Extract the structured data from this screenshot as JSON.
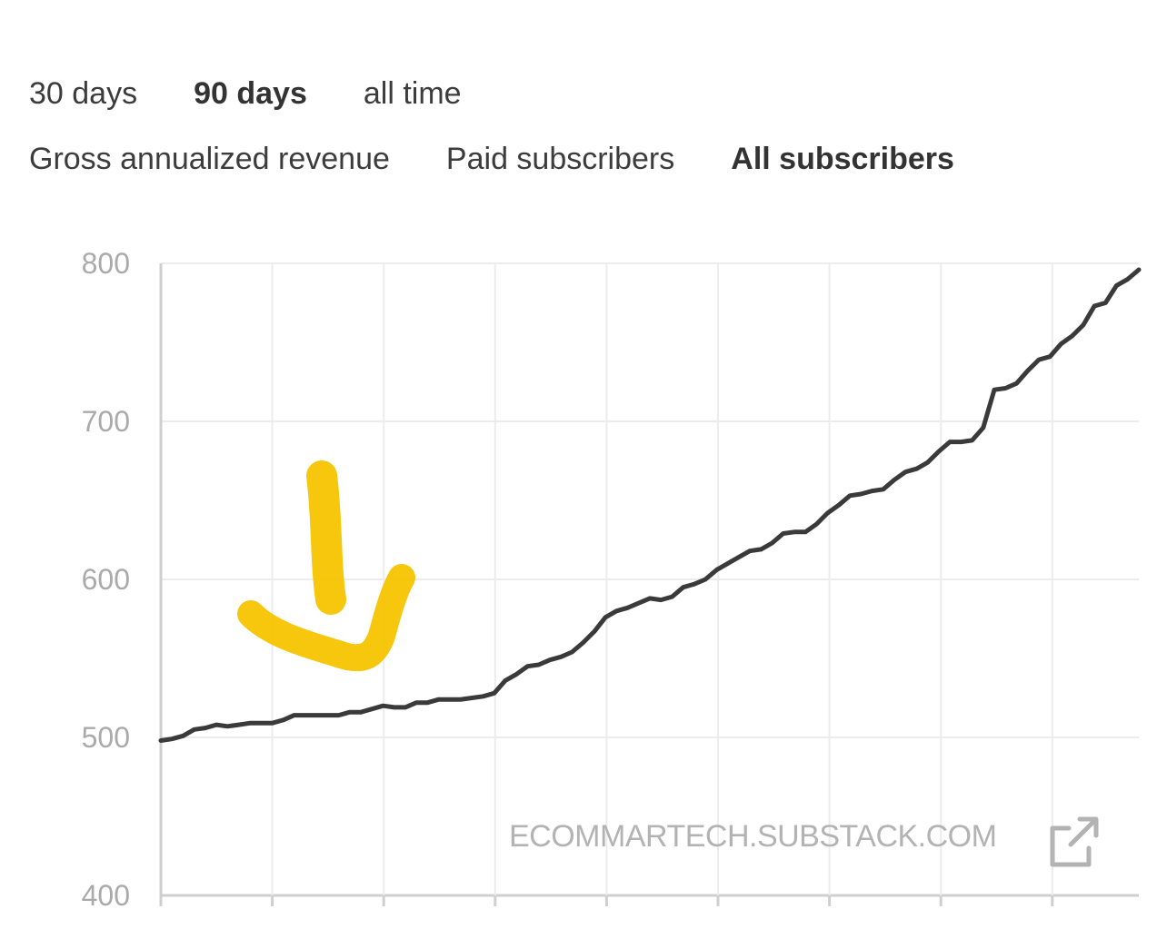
{
  "period_tabs": {
    "items": [
      {
        "label": "30 days",
        "active": false
      },
      {
        "label": "90 days",
        "active": true
      },
      {
        "label": "all time",
        "active": false
      }
    ]
  },
  "metric_tabs": {
    "items": [
      {
        "label": "Gross annualized revenue",
        "active": false
      },
      {
        "label": "Paid subscribers",
        "active": false
      },
      {
        "label": "All subscribers",
        "active": true
      }
    ]
  },
  "watermark": {
    "text": "ECOMMARTECH.SUBSTACK.COM",
    "icon": "external-link-icon"
  },
  "annotation": {
    "icon": "down-arrow-icon",
    "color": "#f7c400"
  },
  "chart_data": {
    "type": "line",
    "title": "",
    "xlabel": "",
    "ylabel": "",
    "ylim": [
      400,
      800
    ],
    "yticks": [
      800,
      700,
      600,
      500,
      400
    ],
    "grid": true,
    "legend": "none",
    "series_color": "#3a3a3a",
    "x": [
      0,
      1,
      2,
      3,
      4,
      5,
      6,
      7,
      8,
      9,
      10,
      11,
      12,
      13,
      14,
      15,
      16,
      17,
      18,
      19,
      20,
      21,
      22,
      23,
      24,
      25,
      26,
      27,
      28,
      29,
      30,
      31,
      32,
      33,
      34,
      35,
      36,
      37,
      38,
      39,
      40,
      41,
      42,
      43,
      44,
      45,
      46,
      47,
      48,
      49,
      50,
      51,
      52,
      53,
      54,
      55,
      56,
      57,
      58,
      59,
      60,
      61,
      62,
      63,
      64,
      65,
      66,
      67,
      68,
      69,
      70,
      71,
      72,
      73,
      74,
      75,
      76,
      77,
      78,
      79,
      80,
      81,
      82,
      83,
      84,
      85,
      86,
      87,
      88
    ],
    "series": [
      {
        "values": [
          498,
          499,
          501,
          505,
          506,
          508,
          507,
          508,
          509,
          509,
          509,
          511,
          514,
          514,
          514,
          514,
          514,
          516,
          516,
          518,
          520,
          519,
          519,
          522,
          522,
          524,
          524,
          524,
          525,
          526,
          528,
          536,
          540,
          545,
          546,
          549,
          551,
          554,
          560,
          567,
          576,
          580,
          582,
          585,
          588,
          587,
          589,
          595,
          597,
          600,
          606,
          610,
          614,
          618,
          619,
          623,
          629,
          630,
          630,
          635,
          642,
          647,
          653,
          654,
          656,
          657,
          663,
          668,
          670,
          674,
          681,
          687,
          687,
          688,
          696,
          720,
          721,
          724,
          732,
          739,
          741,
          749,
          754,
          761,
          773,
          775,
          786,
          790,
          796
        ]
      }
    ]
  }
}
